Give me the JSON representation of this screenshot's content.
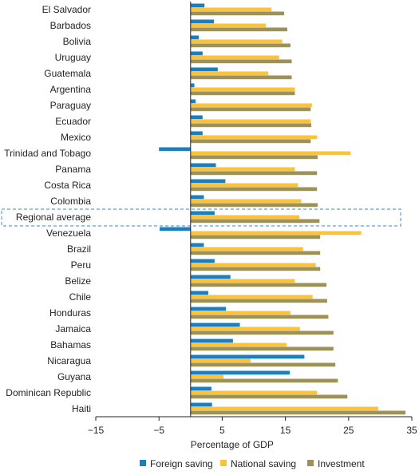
{
  "chart_data": {
    "type": "bar",
    "orientation": "horizontal",
    "xlabel": "Percentage of GDP",
    "xlim": [
      -15,
      35
    ],
    "xticks": [
      -15,
      -5,
      5,
      15,
      25,
      35
    ],
    "xtick_labels": [
      "−15",
      "−5",
      "5",
      "15",
      "25",
      "35"
    ],
    "grid": false,
    "legend_position": "bottom",
    "highlighted_category": "Regional average",
    "categories": [
      "El Salvador",
      "Barbados",
      "Bolivia",
      "Uruguay",
      "Guatemala",
      "Argentina",
      "Paraguay",
      "Ecuador",
      "Mexico",
      "Trinidad and Tobago",
      "Panama",
      "Costa Rica",
      "Colombia",
      "Regional average",
      "Venezuela",
      "Brazil",
      "Peru",
      "Belize",
      "Chile",
      "Honduras",
      "Jamaica",
      "Bahamas",
      "Nicaragua",
      "Guyana",
      "Dominican Republic",
      "Haiti"
    ],
    "series": [
      {
        "name": "Foreign saving",
        "color": "#1a7ec0",
        "values": [
          2.2,
          3.7,
          1.3,
          1.9,
          4.3,
          0.6,
          0.8,
          1.9,
          1.9,
          -5.0,
          4.0,
          5.5,
          2.1,
          3.8,
          -4.9,
          2.1,
          3.8,
          6.3,
          2.8,
          5.6,
          7.8,
          6.7,
          18.0,
          15.7,
          3.3,
          3.4
        ]
      },
      {
        "name": "National saving",
        "color": "#fdc237",
        "values": [
          12.8,
          11.9,
          14.5,
          14.0,
          12.3,
          16.5,
          19.2,
          19.0,
          20.0,
          25.3,
          16.5,
          17.0,
          17.5,
          17.2,
          27.0,
          17.8,
          19.8,
          16.5,
          19.3,
          15.8,
          17.3,
          15.2,
          9.5,
          5.2,
          20.0,
          29.7
        ]
      },
      {
        "name": "Investment",
        "color": "#9b9159",
        "values": [
          14.8,
          15.3,
          15.8,
          16.0,
          16.0,
          16.5,
          19.0,
          19.1,
          19.0,
          20.1,
          20.0,
          20.0,
          20.1,
          20.4,
          20.5,
          20.5,
          20.5,
          21.5,
          21.6,
          21.8,
          22.6,
          22.6,
          22.9,
          23.3,
          24.8,
          34.0
        ]
      }
    ]
  }
}
